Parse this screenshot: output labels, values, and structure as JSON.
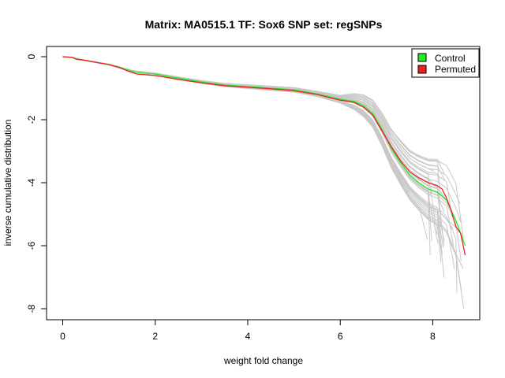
{
  "chart_data": {
    "type": "line",
    "title": "Matrix: MA0515.1 TF: Sox6 SNP set: regSNPs",
    "xlabel": "weight fold change",
    "ylabel": "inverse cumulative distribution",
    "xlim": [
      0,
      8.8
    ],
    "ylim": [
      -8,
      0
    ],
    "xticks": [
      0,
      2,
      4,
      6,
      8
    ],
    "yticks": [
      0,
      -2,
      -4,
      -6,
      -8
    ],
    "legend": {
      "placement": "top-right",
      "entries": [
        {
          "label": "Control",
          "color": "#22ee22"
        },
        {
          "label": "Permuted",
          "color": "#ee2222"
        }
      ]
    },
    "background_series_color": "#c8c8c8",
    "background_series_count": 40,
    "background_series_base_x": [
      0,
      0.2,
      0.5,
      1.0,
      1.5,
      2.0,
      2.5,
      3.0,
      3.5,
      4.0,
      4.5,
      5.0,
      5.5,
      6.0,
      6.3,
      6.5,
      6.7,
      6.9,
      7.1,
      7.3,
      7.5,
      7.7,
      7.9,
      8.1,
      8.3,
      8.5,
      8.7
    ],
    "series": [
      {
        "name": "Control",
        "color": "#22ee22",
        "x": [
          0,
          0.2,
          0.3,
          0.5,
          0.8,
          1.0,
          1.2,
          1.4,
          1.6,
          2.0,
          2.5,
          3.0,
          3.5,
          4.0,
          4.5,
          5.0,
          5.5,
          6.0,
          6.3,
          6.5,
          6.7,
          6.9,
          7.1,
          7.3,
          7.5,
          7.7,
          7.9,
          8.1,
          8.3,
          8.5,
          8.6,
          8.7
        ],
        "y": [
          0,
          -0.02,
          -0.08,
          -0.12,
          -0.2,
          -0.25,
          -0.32,
          -0.42,
          -0.5,
          -0.55,
          -0.68,
          -0.8,
          -0.9,
          -0.95,
          -1.0,
          -1.05,
          -1.18,
          -1.35,
          -1.42,
          -1.55,
          -1.8,
          -2.3,
          -2.9,
          -3.35,
          -3.75,
          -4.0,
          -4.2,
          -4.3,
          -4.55,
          -5.2,
          -5.6,
          -6.0
        ]
      },
      {
        "name": "Permuted",
        "color": "#ee2222",
        "x": [
          0,
          0.2,
          0.3,
          0.5,
          0.8,
          1.0,
          1.2,
          1.4,
          1.6,
          2.0,
          2.5,
          3.0,
          3.5,
          4.0,
          4.5,
          5.0,
          5.5,
          6.0,
          6.3,
          6.5,
          6.7,
          6.9,
          7.1,
          7.3,
          7.5,
          7.7,
          7.9,
          8.1,
          8.2,
          8.3,
          8.4,
          8.5,
          8.6,
          8.7
        ],
        "y": [
          0,
          -0.02,
          -0.08,
          -0.12,
          -0.2,
          -0.25,
          -0.33,
          -0.45,
          -0.55,
          -0.6,
          -0.72,
          -0.83,
          -0.92,
          -0.97,
          -1.02,
          -1.08,
          -1.2,
          -1.38,
          -1.45,
          -1.6,
          -1.85,
          -2.35,
          -2.85,
          -3.3,
          -3.65,
          -3.85,
          -4.0,
          -4.1,
          -4.2,
          -4.5,
          -4.9,
          -5.4,
          -5.6,
          -6.3
        ]
      }
    ]
  }
}
